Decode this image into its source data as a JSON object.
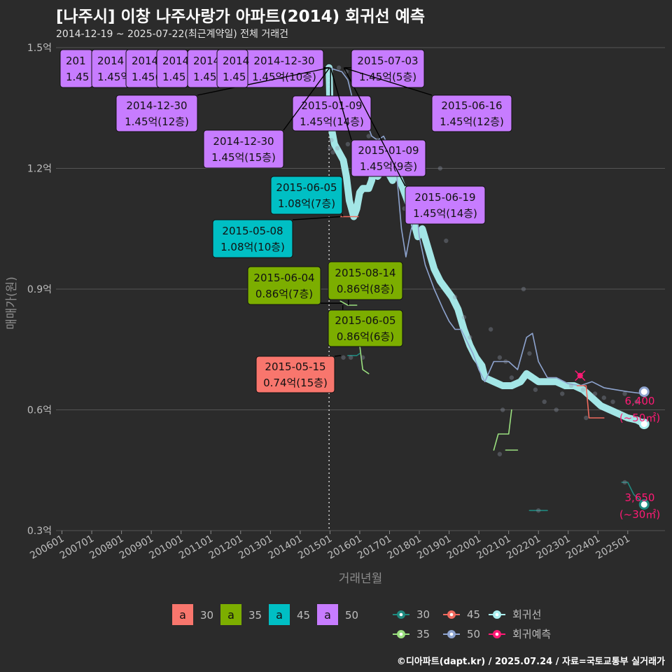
{
  "header": {
    "title": "[나주시] 이창 나주사랑가 아파트(2014) 회귀선 예측",
    "subtitle": "2014-12-19 ~ 2025-07-22(최근계약일) 전체 거래건",
    "credit": "©디아파트(dapt.kr) / 2025.07.24 / 자료=국토교통부 실거래가"
  },
  "colors": {
    "bg": "#2b2b2b",
    "grid": "#555555",
    "a30": "#f8766d",
    "a35": "#7cae00",
    "a45": "#00bfc4",
    "a50": "#c77cff",
    "l30": "#1f8a80",
    "l35": "#9be07f",
    "l45": "#f06a5e",
    "l50": "#8ea4cf",
    "reg": "#aaf0f0",
    "pred": "#ff1a75"
  },
  "chart_data": {
    "type": "line",
    "title": "[나주시] 이창 나주사랑가 아파트(2014) 회귀선 예측",
    "xlabel": "거래년월",
    "ylabel": "매매가(원)",
    "x_ticks": [
      "200601",
      "200701",
      "200801",
      "200901",
      "201001",
      "201101",
      "201201",
      "201301",
      "201401",
      "201501",
      "201601",
      "201701",
      "201801",
      "201901",
      "202001",
      "202101",
      "202201",
      "202301",
      "202401",
      "202501"
    ],
    "y_ticks": [
      "0.3억",
      "0.6억",
      "0.9억",
      "1.2억",
      "1.5억"
    ],
    "ylim": [
      0.3,
      1.5
    ],
    "y_unit": "억",
    "vline_x": 2014.97,
    "series": [
      {
        "name": "회귀선",
        "key": "reg",
        "points": [
          [
            2014.97,
            1.45
          ],
          [
            2015.0,
            1.35
          ],
          [
            2015.05,
            1.3
          ],
          [
            2015.15,
            1.26
          ],
          [
            2015.3,
            1.24
          ],
          [
            2015.45,
            1.22
          ],
          [
            2015.55,
            1.18
          ],
          [
            2015.65,
            1.12
          ],
          [
            2015.8,
            1.08
          ],
          [
            2015.9,
            1.1
          ],
          [
            2016.0,
            1.14
          ],
          [
            2016.1,
            1.15
          ],
          [
            2016.3,
            1.15
          ],
          [
            2016.4,
            1.17
          ],
          [
            2016.5,
            1.21
          ],
          [
            2016.6,
            1.18
          ],
          [
            2016.8,
            1.2
          ],
          [
            2016.95,
            1.19
          ],
          [
            2017.1,
            1.17
          ],
          [
            2017.2,
            1.2
          ],
          [
            2017.4,
            1.16
          ],
          [
            2017.6,
            1.12
          ],
          [
            2017.8,
            1.07
          ],
          [
            2017.95,
            1.03
          ],
          [
            2018.1,
            1.05
          ],
          [
            2018.3,
            1.0
          ],
          [
            2018.5,
            0.95
          ],
          [
            2018.7,
            0.92
          ],
          [
            2018.9,
            0.9
          ],
          [
            2019.1,
            0.88
          ],
          [
            2019.3,
            0.85
          ],
          [
            2019.5,
            0.8
          ],
          [
            2019.7,
            0.76
          ],
          [
            2019.9,
            0.73
          ],
          [
            2020.1,
            0.71
          ],
          [
            2020.2,
            0.68
          ],
          [
            2020.5,
            0.67
          ],
          [
            2020.8,
            0.66
          ],
          [
            2021.1,
            0.66
          ],
          [
            2021.4,
            0.67
          ],
          [
            2021.6,
            0.69
          ],
          [
            2021.8,
            0.68
          ],
          [
            2022.0,
            0.67
          ],
          [
            2022.3,
            0.67
          ],
          [
            2022.6,
            0.67
          ],
          [
            2022.9,
            0.66
          ],
          [
            2023.2,
            0.66
          ],
          [
            2023.5,
            0.65
          ],
          [
            2023.8,
            0.63
          ],
          [
            2024.1,
            0.61
          ],
          [
            2024.4,
            0.6
          ],
          [
            2024.7,
            0.59
          ],
          [
            2025.0,
            0.58
          ],
          [
            2025.3,
            0.575
          ],
          [
            2025.55,
            0.565
          ]
        ]
      },
      {
        "name": "50",
        "key": "l50",
        "points": [
          [
            2014.97,
            1.45
          ],
          [
            2015.4,
            1.44
          ],
          [
            2015.6,
            1.42
          ],
          [
            2015.8,
            1.36
          ],
          [
            2015.95,
            1.34
          ],
          [
            2016.2,
            1.32
          ],
          [
            2016.4,
            1.28
          ],
          [
            2016.6,
            1.27
          ],
          [
            2016.8,
            1.28
          ],
          [
            2017.0,
            1.25
          ],
          [
            2017.2,
            1.22
          ],
          [
            2017.4,
            1.05
          ],
          [
            2017.55,
            0.98
          ],
          [
            2017.7,
            1.04
          ],
          [
            2017.9,
            1.1
          ],
          [
            2018.0,
            1.03
          ],
          [
            2018.2,
            0.96
          ],
          [
            2018.5,
            0.9
          ],
          [
            2018.8,
            0.85
          ],
          [
            2019.0,
            0.82
          ],
          [
            2019.2,
            0.8
          ],
          [
            2019.4,
            0.8
          ],
          [
            2019.6,
            0.77
          ],
          [
            2019.8,
            0.74
          ],
          [
            2020.0,
            0.7
          ],
          [
            2020.2,
            0.67
          ],
          [
            2020.5,
            0.72
          ],
          [
            2020.8,
            0.72
          ],
          [
            2021.0,
            0.72
          ],
          [
            2021.3,
            0.7
          ],
          [
            2021.6,
            0.78
          ],
          [
            2021.8,
            0.79
          ],
          [
            2022.0,
            0.72
          ],
          [
            2022.3,
            0.68
          ],
          [
            2022.6,
            0.68
          ],
          [
            2023.0,
            0.665
          ],
          [
            2023.4,
            0.66
          ],
          [
            2023.8,
            0.67
          ],
          [
            2024.2,
            0.655
          ],
          [
            2024.6,
            0.65
          ],
          [
            2025.0,
            0.645
          ],
          [
            2025.55,
            0.64
          ]
        ]
      },
      {
        "name": "45",
        "key": "l45",
        "points": [
          [
            2015.35,
            1.08
          ],
          [
            2015.5,
            1.08
          ],
          [
            2015.95,
            1.08
          ]
        ]
      },
      {
        "name": "45b",
        "key": "l45",
        "points": [
          [
            2023.3,
            0.66
          ],
          [
            2023.6,
            0.66
          ],
          [
            2023.7,
            0.58
          ],
          [
            2024.2,
            0.58
          ]
        ]
      },
      {
        "name": "35",
        "key": "l35",
        "points": [
          [
            2015.35,
            0.87
          ],
          [
            2015.6,
            0.86
          ],
          [
            2015.9,
            0.86
          ]
        ]
      },
      {
        "name": "35b",
        "key": "l35",
        "points": [
          [
            2016.0,
            0.76
          ],
          [
            2016.1,
            0.7
          ],
          [
            2016.3,
            0.69
          ]
        ]
      },
      {
        "name": "35c",
        "key": "l35",
        "points": [
          [
            2020.5,
            0.5
          ],
          [
            2020.65,
            0.54
          ],
          [
            2021.0,
            0.54
          ],
          [
            2021.1,
            0.6
          ]
        ]
      },
      {
        "name": "35d",
        "key": "l35",
        "points": [
          [
            2020.9,
            0.5
          ],
          [
            2021.3,
            0.5
          ]
        ]
      },
      {
        "name": "30",
        "key": "l30",
        "points": [
          [
            2015.6,
            0.735
          ],
          [
            2015.9,
            0.735
          ],
          [
            2016.0,
            0.74
          ]
        ]
      },
      {
        "name": "30b",
        "key": "l30",
        "points": [
          [
            2021.7,
            0.35
          ],
          [
            2022.3,
            0.35
          ]
        ]
      },
      {
        "name": "30c",
        "key": "l30",
        "points": [
          [
            2024.8,
            0.42
          ],
          [
            2025.0,
            0.42
          ],
          [
            2025.2,
            0.39
          ],
          [
            2025.55,
            0.365
          ]
        ]
      }
    ],
    "scatter": [
      [
        2014.97,
        1.45
      ],
      [
        2015.3,
        1.45
      ],
      [
        2015.55,
        1.44
      ],
      [
        2015.0,
        1.25
      ],
      [
        2015.05,
        1.27
      ],
      [
        2015.1,
        1.24
      ],
      [
        2015.25,
        1.25
      ],
      [
        2015.6,
        1.26
      ],
      [
        2015.8,
        1.25
      ],
      [
        2016.3,
        1.28
      ],
      [
        2016.6,
        1.27
      ],
      [
        2016.9,
        1.26
      ],
      [
        2017.2,
        1.2
      ],
      [
        2017.5,
        1.1
      ],
      [
        2018.3,
        1.15
      ],
      [
        2018.7,
        1.2
      ],
      [
        2018.9,
        1.02
      ],
      [
        2019.2,
        0.88
      ],
      [
        2019.5,
        0.83
      ],
      [
        2019.7,
        0.78
      ],
      [
        2020.4,
        0.8
      ],
      [
        2020.7,
        0.73
      ],
      [
        2020.9,
        0.72
      ],
      [
        2021.1,
        0.68
      ],
      [
        2021.5,
        0.9
      ],
      [
        2021.7,
        0.74
      ],
      [
        2021.9,
        0.65
      ],
      [
        2022.2,
        0.62
      ],
      [
        2022.6,
        0.6
      ],
      [
        2022.8,
        0.64
      ],
      [
        2023.1,
        0.66
      ],
      [
        2023.5,
        0.65
      ],
      [
        2023.9,
        0.64
      ],
      [
        2024.2,
        0.63
      ],
      [
        2024.5,
        0.62
      ],
      [
        2024.9,
        0.64
      ],
      [
        2025.3,
        0.62
      ],
      [
        2015.45,
        0.73
      ],
      [
        2015.7,
        0.73
      ],
      [
        2016.1,
        0.73
      ],
      [
        2020.8,
        0.6
      ],
      [
        2020.7,
        0.49
      ],
      [
        2022.0,
        0.35
      ],
      [
        2024.9,
        0.42
      ],
      [
        2023.6,
        0.58
      ]
    ],
    "end_markers": [
      {
        "key": "l50",
        "x": 2025.55,
        "y": 0.645
      },
      {
        "key": "reg",
        "x": 2025.55,
        "y": 0.565
      },
      {
        "key": "l30",
        "x": 2025.55,
        "y": 0.365
      },
      {
        "key": "pred",
        "x": 2023.4,
        "y": 0.685
      }
    ],
    "predictions": [
      {
        "value": "6,400",
        "area": "(~50㎡)",
        "y": 0.61
      },
      {
        "value": "3,650",
        "area": "(~30㎡)",
        "y": 0.37
      }
    ],
    "labels": [
      {
        "date": "2015-01-09",
        "price": "1.45억(14층)",
        "group": "a50",
        "x": 2015.02,
        "y": 1.45
      },
      {
        "date": "2015-01-09",
        "price": "1.45억(9층)",
        "group": "a50",
        "x": 2015.02,
        "y": 1.45
      },
      {
        "date": "2015-06-19",
        "price": "1.45억(14층)",
        "group": "a50",
        "x": 2015.47,
        "y": 1.45
      },
      {
        "date": "2015-07-03",
        "price": "1.45억(5층)",
        "group": "a50",
        "x": 2015.5,
        "y": 1.45
      },
      {
        "date": "2015-06-16",
        "price": "1.45억(12층)",
        "group": "a50",
        "x": 2015.46,
        "y": 1.45
      },
      {
        "date": "2014-12-30",
        "price": "1.45억(10층)",
        "group": "a50",
        "x": 2014.99,
        "y": 1.45
      },
      {
        "date": "2014-12-30",
        "price": "1.45억(12층)",
        "group": "a50",
        "x": 2014.99,
        "y": 1.45
      },
      {
        "date": "2014-12-30",
        "price": "1.45억(15층)",
        "group": "a50",
        "x": 2014.99,
        "y": 1.45
      },
      {
        "date": "2015-06-05",
        "price": "1.08억(7층)",
        "group": "a45",
        "x": 2015.43,
        "y": 1.08
      },
      {
        "date": "2015-05-08",
        "price": "1.08억(10층)",
        "group": "a45",
        "x": 2015.35,
        "y": 1.08
      },
      {
        "date": "2015-06-04",
        "price": "0.86억(7층)",
        "group": "a35",
        "x": 2015.42,
        "y": 0.865
      },
      {
        "date": "2015-08-14",
        "price": "0.86억(8층)",
        "group": "a35",
        "x": 2015.62,
        "y": 0.86
      },
      {
        "date": "2015-06-05",
        "price": "0.86억(6층)",
        "group": "a35",
        "x": 2015.43,
        "y": 0.86
      },
      {
        "date": "2015-05-15",
        "price": "0.74억(15층)",
        "group": "a30",
        "x": 2015.37,
        "y": 0.735
      }
    ],
    "clipped_labels": [
      {
        "date": "201",
        "price": "1.45"
      },
      {
        "date": "2014",
        "price": "1.45억"
      },
      {
        "date": "2014",
        "price": "1.45("
      },
      {
        "date": "2014",
        "price": "1.45"
      },
      {
        "date": "2014",
        "price": "1.45("
      },
      {
        "date": "2014",
        "price": "1.45"
      }
    ],
    "legend_fill": {
      "title": "a",
      "items": [
        {
          "key": "a30",
          "label": "30"
        },
        {
          "key": "a35",
          "label": "35"
        },
        {
          "key": "a45",
          "label": "45"
        },
        {
          "key": "a50",
          "label": "50"
        }
      ]
    },
    "legend_line": {
      "items": [
        {
          "key": "l30",
          "label": "30"
        },
        {
          "key": "l45",
          "label": "45"
        },
        {
          "key": "reg",
          "label": "회귀선"
        },
        {
          "key": "l35",
          "label": "35"
        },
        {
          "key": "l50",
          "label": "50"
        },
        {
          "key": "pred",
          "label": "회귀예측"
        }
      ]
    }
  }
}
